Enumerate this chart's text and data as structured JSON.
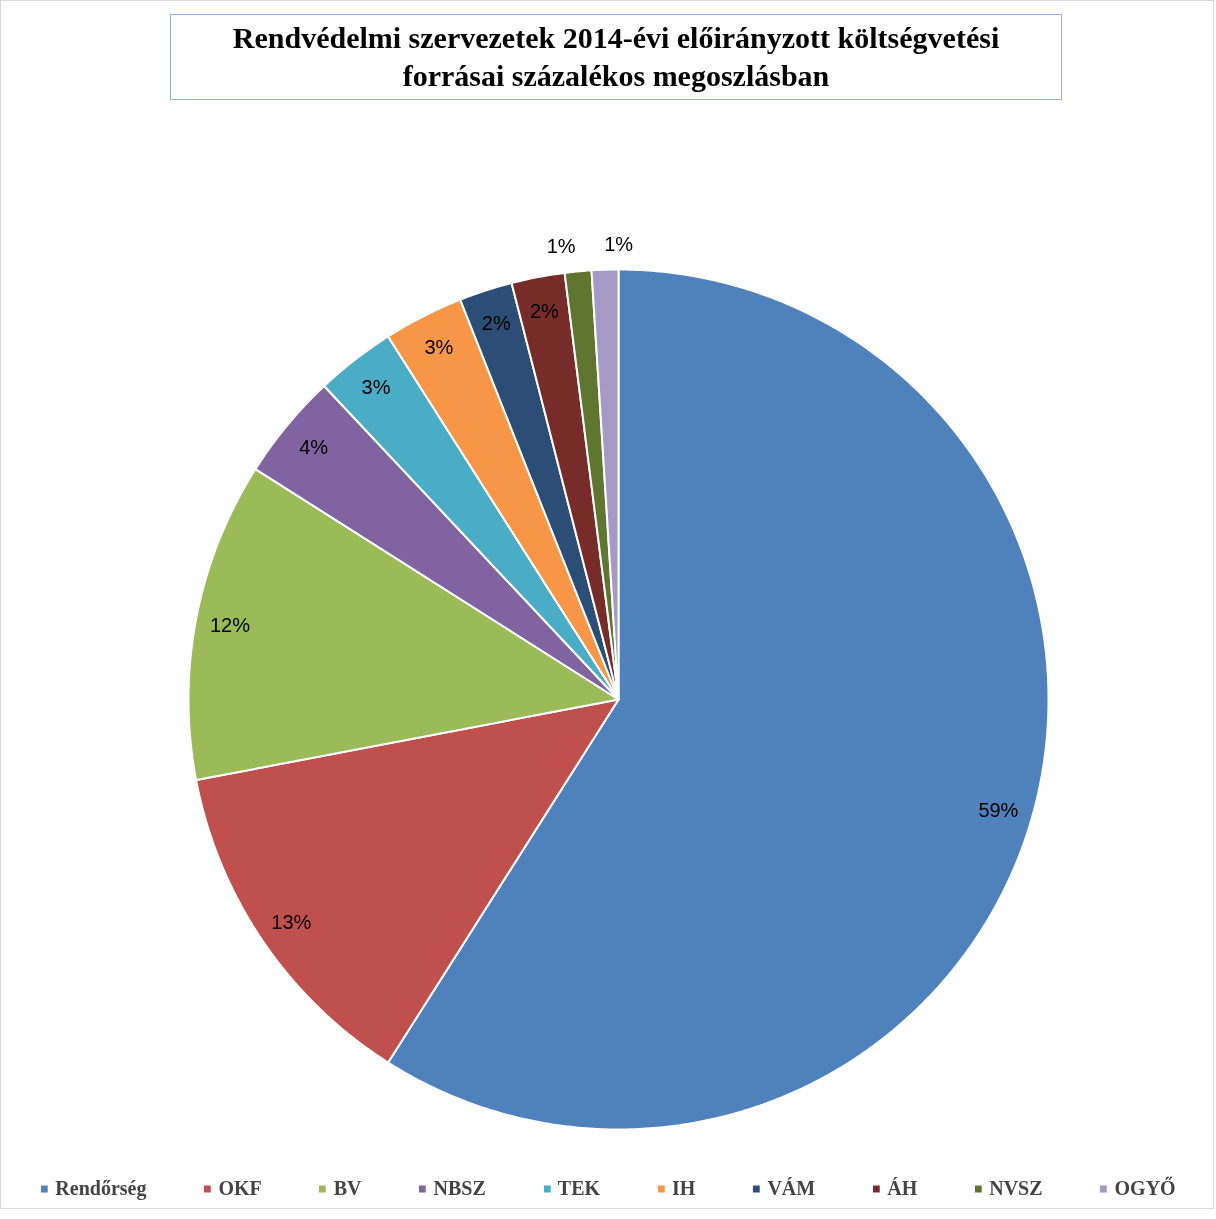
{
  "chart_data": {
    "type": "pie",
    "title": "Rendvédelmi szervezetek 2014-évi előirányzott költségvetési forrásai százalékos megoszlásban",
    "categories": [
      "Rendőrség",
      "OKF",
      "BV",
      "NBSZ",
      "TEK",
      "IH",
      "VÁM",
      "ÁH",
      "NVSZ",
      "OGYŐ"
    ],
    "values": [
      59,
      13,
      12,
      4,
      3,
      3,
      2,
      2,
      1,
      1
    ],
    "colors": [
      "#4f81bd",
      "#c0504d",
      "#9bbb59",
      "#8064a2",
      "#4bacc6",
      "#f79646",
      "#2c4d75",
      "#772c2a",
      "#5f7530",
      "#a599c6"
    ],
    "value_labels": [
      "59%",
      "13%",
      "12%",
      "4%",
      "3%",
      "3%",
      "2%",
      "2%",
      "1%",
      "1%"
    ],
    "legend": "bottom"
  }
}
